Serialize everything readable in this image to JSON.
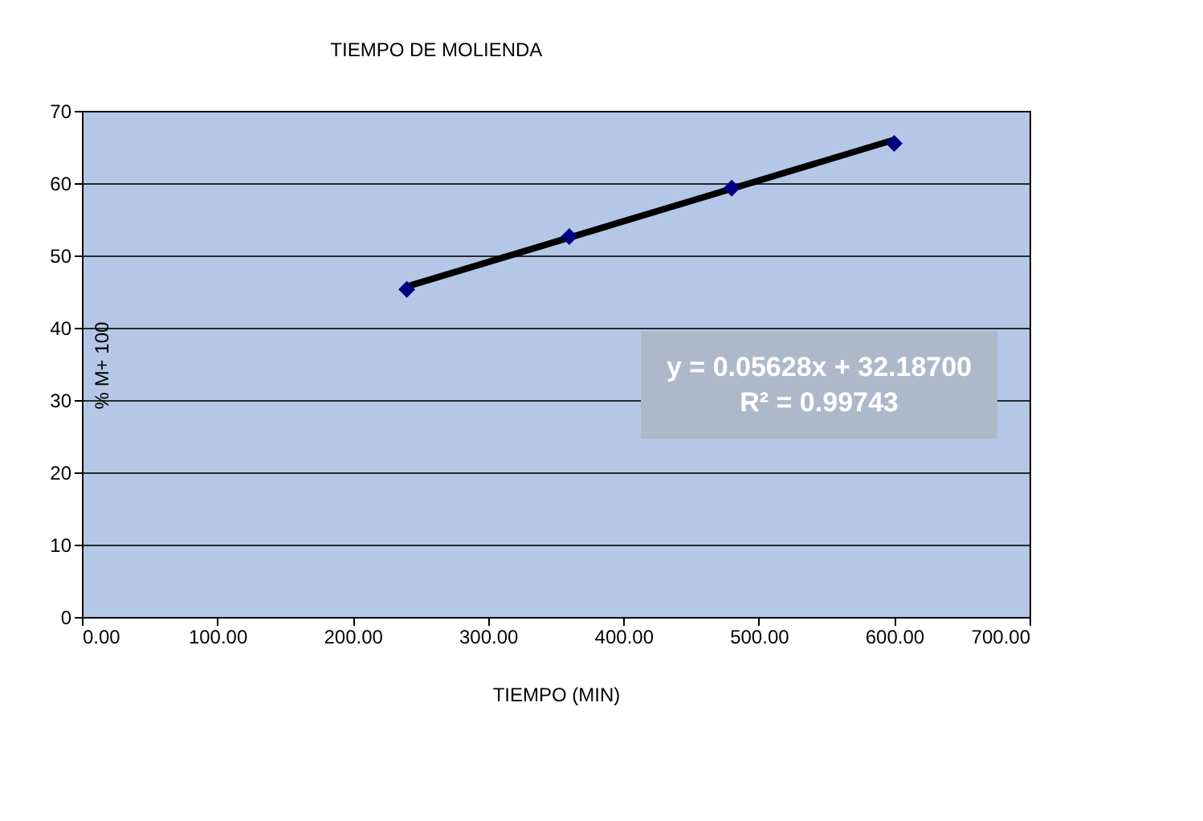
{
  "chart_data": {
    "type": "scatter",
    "title": "TIEMPO  DE MOLIENDA",
    "xlabel": "TIEMPO  (MIN)",
    "ylabel": "% M+ 100",
    "series": [
      {
        "color": "#000080",
        "marker": "diamond",
        "x": [
          240,
          360,
          480,
          600
        ],
        "values": [
          45.3,
          52.6,
          59.3,
          65.5
        ]
      },
      {
        "type": "line",
        "color": "#000000",
        "line_style": "solid",
        "x": [
          240,
          600
        ],
        "values": [
          45.7,
          66.0
        ]
      }
    ],
    "xlim": [
      0,
      700
    ],
    "ylim": [
      0,
      70
    ],
    "xticks": [
      {
        "value": 0,
        "label": "0.00"
      },
      {
        "value": 100,
        "label": "100.00"
      },
      {
        "value": 200,
        "label": "200.00"
      },
      {
        "value": 300,
        "label": "300.00"
      },
      {
        "value": 400,
        "label": "400.00"
      },
      {
        "value": 500,
        "label": "500.00"
      },
      {
        "value": 600,
        "label": "600.00"
      },
      {
        "value": 700,
        "label": "700.00"
      }
    ],
    "yticks": [
      0,
      10,
      20,
      30,
      40,
      50,
      60,
      70
    ],
    "grid": "y",
    "annotations": [
      "y = 0.05628x + 32.18700\nR² = 0.99743"
    ]
  }
}
